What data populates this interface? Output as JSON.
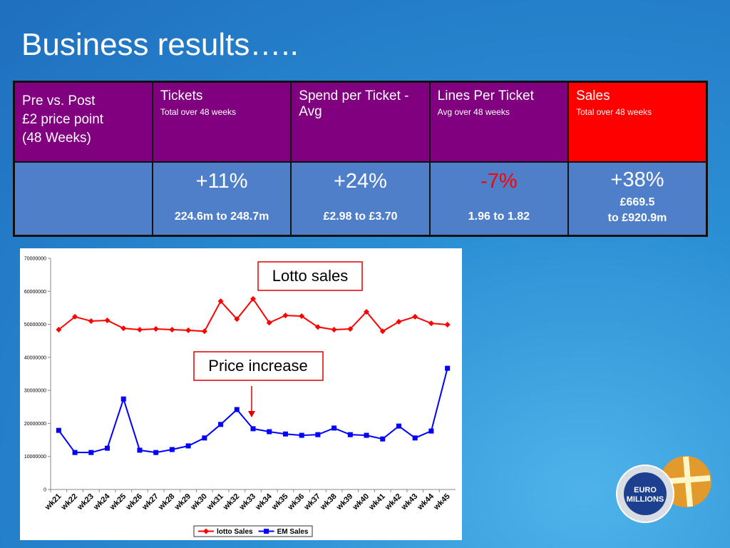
{
  "header": {
    "title": "Business results….."
  },
  "table": {
    "head": [
      {
        "lines": [
          "Pre vs. Post",
          "£2 price point",
          "(48 Weeks)"
        ]
      },
      {
        "title": "Tickets",
        "note": "Total over 48 weeks"
      },
      {
        "title": "Spend per Ticket -Avg"
      },
      {
        "title": "Lines Per Ticket",
        "note": "Avg over 48 weeks"
      },
      {
        "title": "Sales",
        "note": "Total over 48 weeks"
      }
    ],
    "body": [
      {
        "change": "+11%",
        "detail": [
          "224.6m to 248.7m"
        ]
      },
      {
        "change": "+24%",
        "detail": [
          "£2.98 to £3.70"
        ]
      },
      {
        "change": "-7%",
        "detail": [
          "1.96 to 1.82"
        ]
      },
      {
        "change": "+38%",
        "detail": [
          "£669.5",
          "to £920.9m"
        ]
      }
    ]
  },
  "chart_data": {
    "type": "line",
    "categories": [
      "wk21",
      "wk22",
      "wk23",
      "wk24",
      "wk25",
      "wk26",
      "wk27",
      "wk28",
      "wk29",
      "wk30",
      "wk31",
      "wk32",
      "wk33",
      "wk34",
      "wk35",
      "wk36",
      "wk37",
      "wk38",
      "wk39",
      "wk40",
      "wk41",
      "wk42",
      "wk43",
      "wk44",
      "wk45"
    ],
    "series": [
      {
        "name": "lotto Sales",
        "color": "#ff0000",
        "marker": "diamond",
        "values": [
          48400000,
          52300000,
          51000000,
          51200000,
          48800000,
          48400000,
          48600000,
          48400000,
          48200000,
          47900000,
          57000000,
          51600000,
          57700000,
          50500000,
          52700000,
          52500000,
          49200000,
          48400000,
          48600000,
          53800000,
          47900000,
          50800000,
          52300000,
          50300000,
          49900000
        ]
      },
      {
        "name": "EM Sales",
        "color": "#0000ff",
        "marker": "square",
        "values": [
          17900000,
          11200000,
          11200000,
          12500000,
          27400000,
          11900000,
          11200000,
          12100000,
          13200000,
          15600000,
          19700000,
          24200000,
          18400000,
          17500000,
          16800000,
          16400000,
          16600000,
          18600000,
          16600000,
          16400000,
          15300000,
          19200000,
          15600000,
          17700000,
          36700000
        ]
      }
    ],
    "ylim": [
      0,
      70000000
    ],
    "yticks": [
      0,
      10000000,
      20000000,
      30000000,
      40000000,
      50000000,
      60000000,
      70000000
    ],
    "grid": false,
    "legend": "bottom",
    "annotations": [
      "Lotto sales",
      "Price increase"
    ]
  },
  "logo": {
    "lines": [
      "EURO",
      "MILLIONS"
    ]
  }
}
